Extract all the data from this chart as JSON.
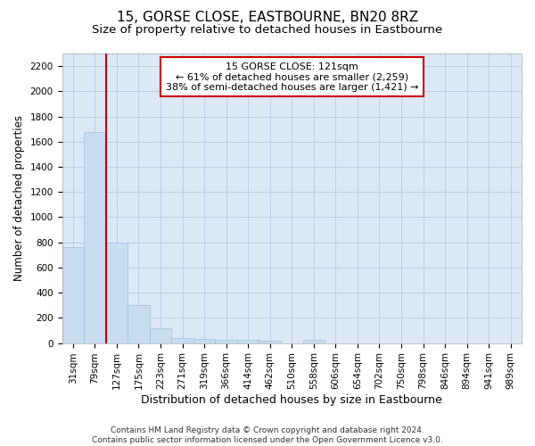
{
  "title": "15, GORSE CLOSE, EASTBOURNE, BN20 8RZ",
  "subtitle": "Size of property relative to detached houses in Eastbourne",
  "xlabel": "Distribution of detached houses by size in Eastbourne",
  "ylabel": "Number of detached properties",
  "categories": [
    "31sqm",
    "79sqm",
    "127sqm",
    "175sqm",
    "223sqm",
    "271sqm",
    "319sqm",
    "366sqm",
    "414sqm",
    "462sqm",
    "510sqm",
    "558sqm",
    "606sqm",
    "654sqm",
    "702sqm",
    "750sqm",
    "798sqm",
    "846sqm",
    "894sqm",
    "941sqm",
    "989sqm"
  ],
  "values": [
    760,
    1680,
    800,
    300,
    115,
    42,
    30,
    25,
    22,
    20,
    0,
    22,
    0,
    0,
    0,
    0,
    0,
    0,
    0,
    0,
    0
  ],
  "bar_color": "#c8ddf0",
  "bar_edge_color": "#a0c0e0",
  "vline_color": "#cc0000",
  "vline_position": 1.5,
  "annotation_label": "15 GORSE CLOSE: 121sqm",
  "annotation_line1": "← 61% of detached houses are smaller (2,259)",
  "annotation_line2": "38% of semi-detached houses are larger (1,421) →",
  "annotation_box_edge": "#cc0000",
  "ylim": [
    0,
    2300
  ],
  "yticks": [
    0,
    200,
    400,
    600,
    800,
    1000,
    1200,
    1400,
    1600,
    1800,
    2000,
    2200
  ],
  "grid_color": "#c0cce0",
  "fig_bg_color": "#ffffff",
  "plot_bg_color": "#dce8f5",
  "title_fontsize": 11,
  "subtitle_fontsize": 9.5,
  "xlabel_fontsize": 9,
  "ylabel_fontsize": 8.5,
  "tick_fontsize": 7.5,
  "annot_fontsize": 8,
  "footer_fontsize": 6.5,
  "footer": "Contains HM Land Registry data © Crown copyright and database right 2024.\nContains public sector information licensed under the Open Government Licence v3.0."
}
